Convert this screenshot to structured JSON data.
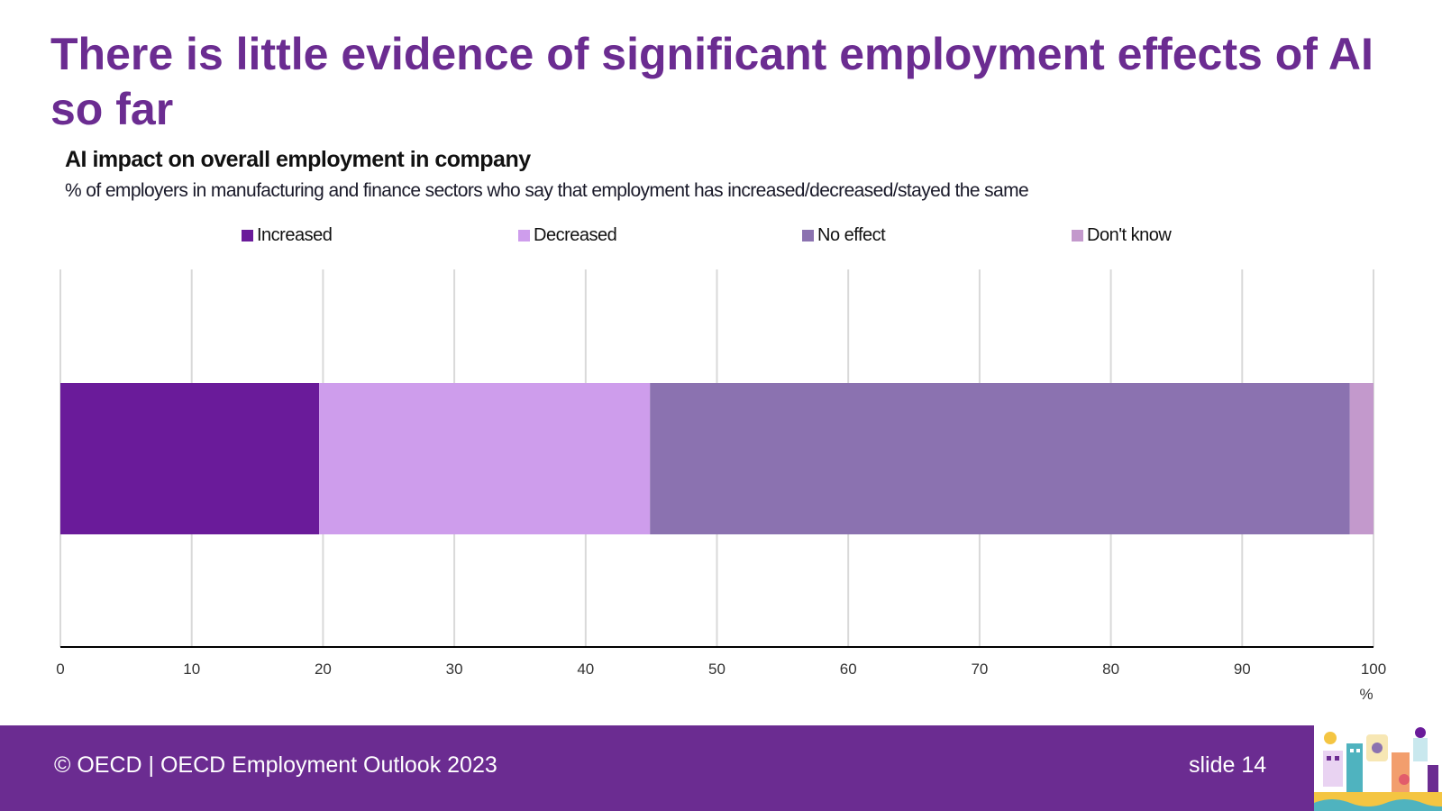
{
  "slide": {
    "title": "There is little evidence of significant employment effects of AI so far",
    "footer": "© OECD | OECD Employment Outlook 2023",
    "slide_number": "slide 14"
  },
  "colors": {
    "brand": "#6B2C91",
    "increased": "#6A1B9A",
    "decreased": "#CE9DEC",
    "no_effect": "#8B72B0",
    "dont_know": "#C399CC"
  },
  "chart_data": {
    "type": "bar",
    "orientation": "horizontal",
    "stacked": true,
    "title": "AI impact on overall employment in company",
    "subtitle": "% of employers in manufacturing and finance sectors who say that employment has increased/decreased/stayed the same",
    "categories": [
      ""
    ],
    "series": [
      {
        "name": "Increased",
        "values": [
          19.7
        ]
      },
      {
        "name": "Decreased",
        "values": [
          25.2
        ]
      },
      {
        "name": "No effect",
        "values": [
          53.3
        ]
      },
      {
        "name": "Don't know",
        "values": [
          1.8
        ]
      }
    ],
    "xlim": [
      0,
      100
    ],
    "x_ticks": [
      "0",
      "10",
      "20",
      "30",
      "40",
      "50",
      "60",
      "70",
      "80",
      "90",
      "100"
    ],
    "xlabel": "%",
    "grid": true,
    "legend_position": "top"
  }
}
